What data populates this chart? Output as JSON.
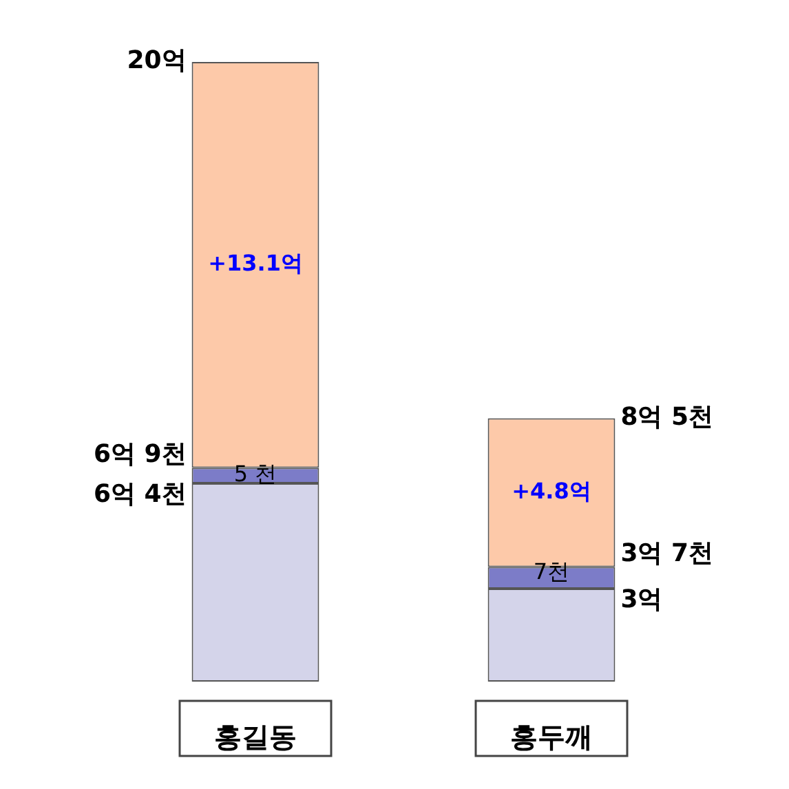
{
  "chart_data": {
    "type": "bar",
    "stacked": true,
    "categories": [
      "홍길동",
      "홍두깨"
    ],
    "series": [
      {
        "color": "#d4d4ea",
        "values": [
          6.4,
          3
        ],
        "value_labels": [
          null,
          null
        ]
      },
      {
        "color": "#7c7cc8",
        "values": [
          0.5,
          0.7
        ]
      },
      {
        "color": "#fdc9a9",
        "values": [
          13.1,
          4.8
        ],
        "value_labels": [
          "+13.1억",
          "+4.8억"
        ]
      }
    ],
    "annotations": [
      {
        "text": "20억",
        "x": "홍길동",
        "y": 20
      },
      {
        "text": "6억 9천",
        "x": "홍길동",
        "y": 6.9
      },
      {
        "text": "6억 4천",
        "x": "홍길동",
        "y": 6.4
      },
      {
        "text": "8억 5천",
        "x": "홍두깨",
        "y": 8.5
      },
      {
        "text": "3억 7천",
        "x": "홍두깨",
        "y": 3.7
      },
      {
        "text": "3억",
        "x": "홍두깨",
        "y": 3
      },
      {
        "text": "5 천",
        "x": "홍길동",
        "y": 6.65
      },
      {
        "text": "7천",
        "x": "홍두깨",
        "y": 3.5
      }
    ]
  }
}
